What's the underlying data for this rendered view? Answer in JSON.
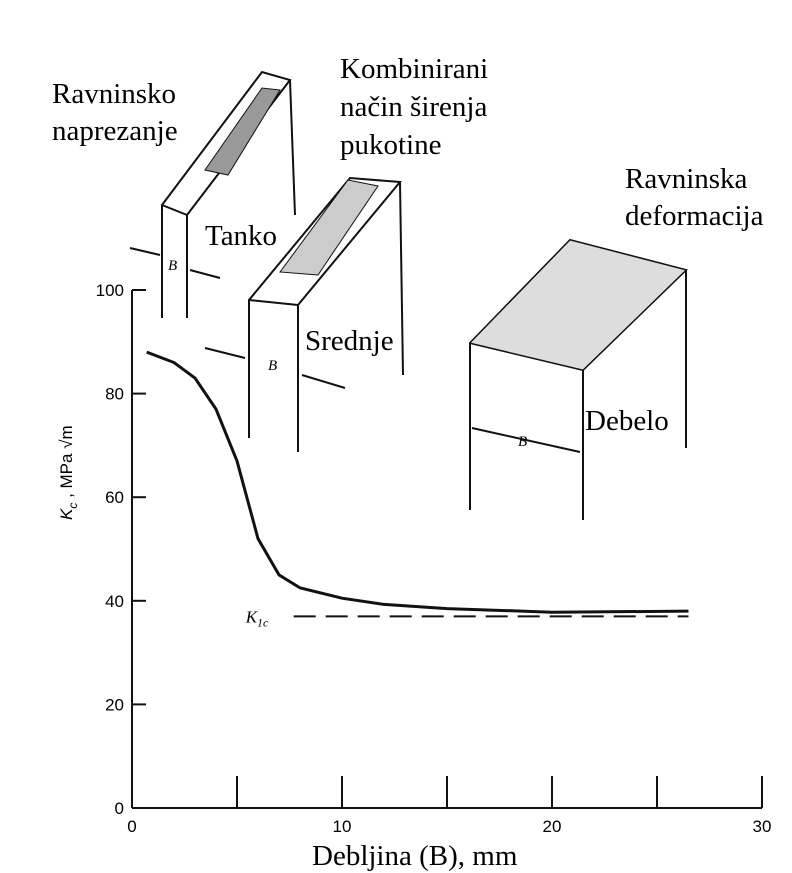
{
  "chart_data": {
    "type": "line",
    "x_label": "Debljina (B), mm",
    "y_label": [
      "K",
      "c",
      " , MPa √m"
    ],
    "xlim": [
      0,
      30
    ],
    "xticks": [
      0,
      10,
      20,
      30
    ],
    "xminor_ticks": [
      5,
      15,
      25
    ],
    "ylim": [
      0,
      100
    ],
    "yticks": [
      0,
      20,
      40,
      60,
      80,
      100
    ],
    "series": [
      {
        "color": "#111111",
        "style": "solid",
        "x": [
          0.7,
          2,
          3,
          4,
          5,
          6,
          7,
          8,
          10,
          12,
          15,
          20,
          26.5
        ],
        "values": [
          88,
          86,
          83,
          77,
          67,
          52,
          45,
          42.5,
          40.5,
          39.3,
          38.5,
          37.8,
          38
        ]
      },
      {
        "label": [
          "K",
          "1c"
        ],
        "color": "#111111",
        "style": "dashed",
        "x": [
          7.7,
          26.5
        ],
        "values": [
          37,
          37
        ]
      }
    ],
    "annotations": {
      "plane_stress": [
        "Ravninsko",
        "naprezanje"
      ],
      "mixed": [
        "Kombinirani",
        "način širenja",
        "pukotine"
      ],
      "plane_strain": [
        "Ravninska",
        "deformacija"
      ],
      "thin": "Tanko",
      "medium": "Srednje",
      "thick": "Debelo",
      "thickness_symbol": "B"
    }
  }
}
